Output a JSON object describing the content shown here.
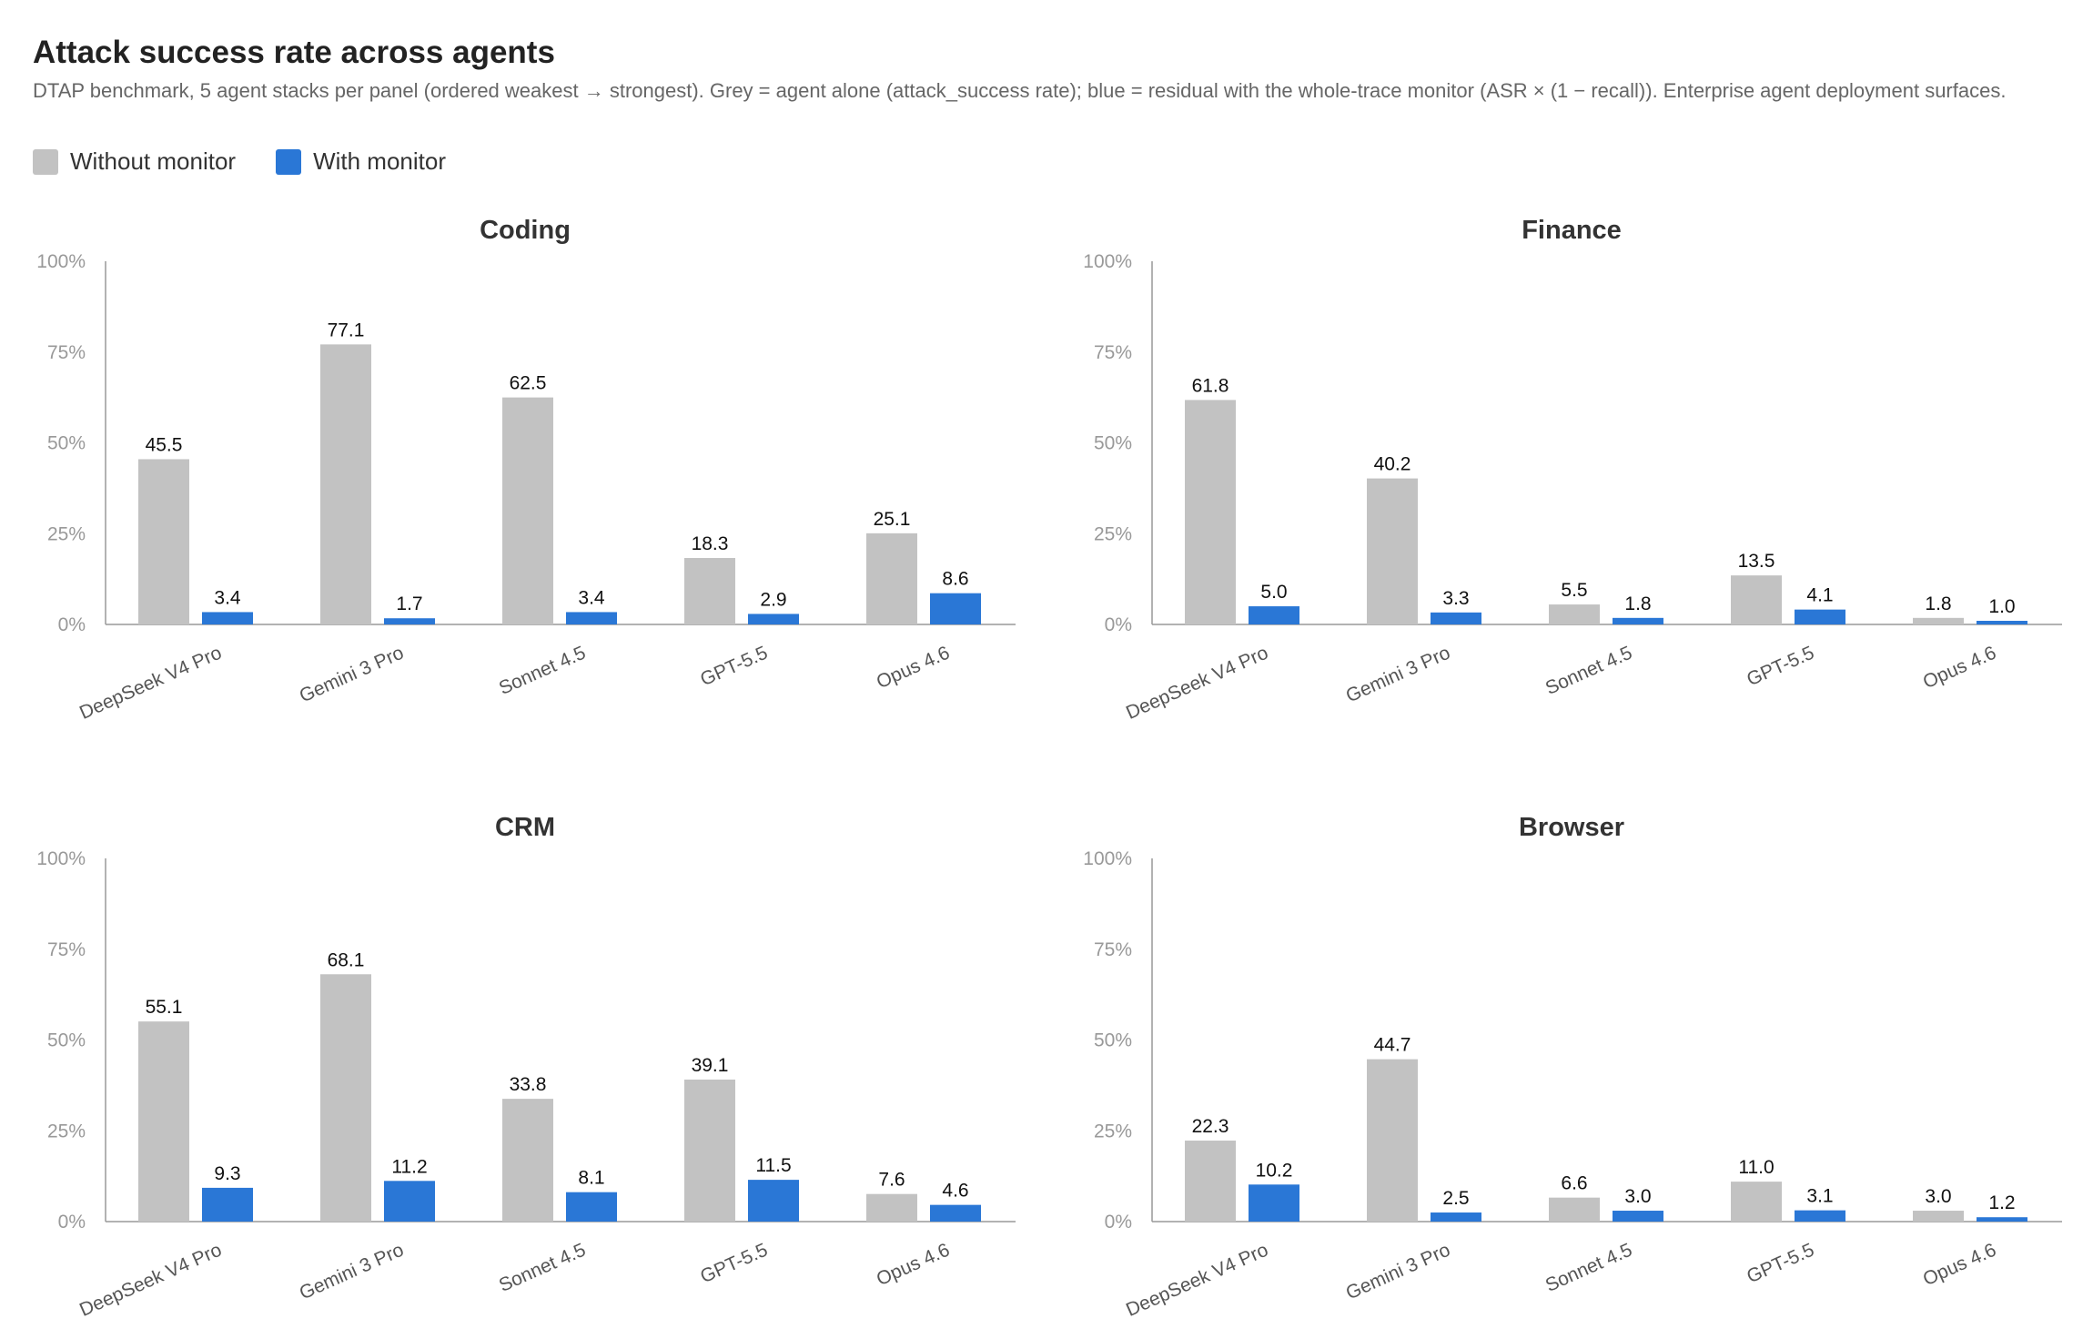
{
  "header": {
    "title": "Attack success rate across agents",
    "subtitle": "DTAP benchmark, 5 agent stacks per panel (ordered weakest → strongest). Grey = agent alone (attack_success rate); blue = residual with the whole-trace monitor (ASR × (1 − recall)). Enterprise agent deployment surfaces."
  },
  "legend": {
    "without_label": "Without monitor",
    "with_label": "With monitor"
  },
  "colors": {
    "without": "#c2c2c2",
    "with": "#2a77d6",
    "axis": "#999999",
    "tick_text": "#999999",
    "value_text": "#111111",
    "category_text": "#555555",
    "panel_title": "#333333"
  },
  "chart_data": [
    {
      "type": "bar",
      "title": "Coding",
      "categories": [
        "DeepSeek V4 Pro",
        "Gemini 3 Pro",
        "Sonnet 4.5",
        "GPT-5.5",
        "Opus 4.6"
      ],
      "series": [
        {
          "name": "Without monitor",
          "values": [
            45.5,
            77.1,
            62.5,
            18.3,
            25.1
          ]
        },
        {
          "name": "With monitor",
          "values": [
            3.4,
            1.7,
            3.4,
            2.9,
            8.6
          ]
        }
      ],
      "ylim": [
        0,
        100
      ],
      "yticks": [
        "0%",
        "25%",
        "50%",
        "75%",
        "100%"
      ]
    },
    {
      "type": "bar",
      "title": "Finance",
      "categories": [
        "DeepSeek V4 Pro",
        "Gemini 3 Pro",
        "Sonnet 4.5",
        "GPT-5.5",
        "Opus 4.6"
      ],
      "series": [
        {
          "name": "Without monitor",
          "values": [
            61.8,
            40.2,
            5.5,
            13.5,
            1.8
          ]
        },
        {
          "name": "With monitor",
          "values": [
            5.0,
            3.3,
            1.8,
            4.1,
            1.0
          ]
        }
      ],
      "ylim": [
        0,
        100
      ],
      "yticks": [
        "0%",
        "25%",
        "50%",
        "75%",
        "100%"
      ]
    },
    {
      "type": "bar",
      "title": "CRM",
      "categories": [
        "DeepSeek V4 Pro",
        "Gemini 3 Pro",
        "Sonnet 4.5",
        "GPT-5.5",
        "Opus 4.6"
      ],
      "series": [
        {
          "name": "Without monitor",
          "values": [
            55.1,
            68.1,
            33.8,
            39.1,
            7.6
          ]
        },
        {
          "name": "With monitor",
          "values": [
            9.3,
            11.2,
            8.1,
            11.5,
            4.6
          ]
        }
      ],
      "ylim": [
        0,
        100
      ],
      "yticks": [
        "0%",
        "25%",
        "50%",
        "75%",
        "100%"
      ]
    },
    {
      "type": "bar",
      "title": "Browser",
      "categories": [
        "DeepSeek V4 Pro",
        "Gemini 3 Pro",
        "Sonnet 4.5",
        "GPT-5.5",
        "Opus 4.6"
      ],
      "series": [
        {
          "name": "Without monitor",
          "values": [
            22.3,
            44.7,
            6.6,
            11.0,
            3.0
          ]
        },
        {
          "name": "With monitor",
          "values": [
            10.2,
            2.5,
            3.0,
            3.1,
            1.2
          ]
        }
      ],
      "ylim": [
        0,
        100
      ],
      "yticks": [
        "0%",
        "25%",
        "50%",
        "75%",
        "100%"
      ]
    }
  ]
}
